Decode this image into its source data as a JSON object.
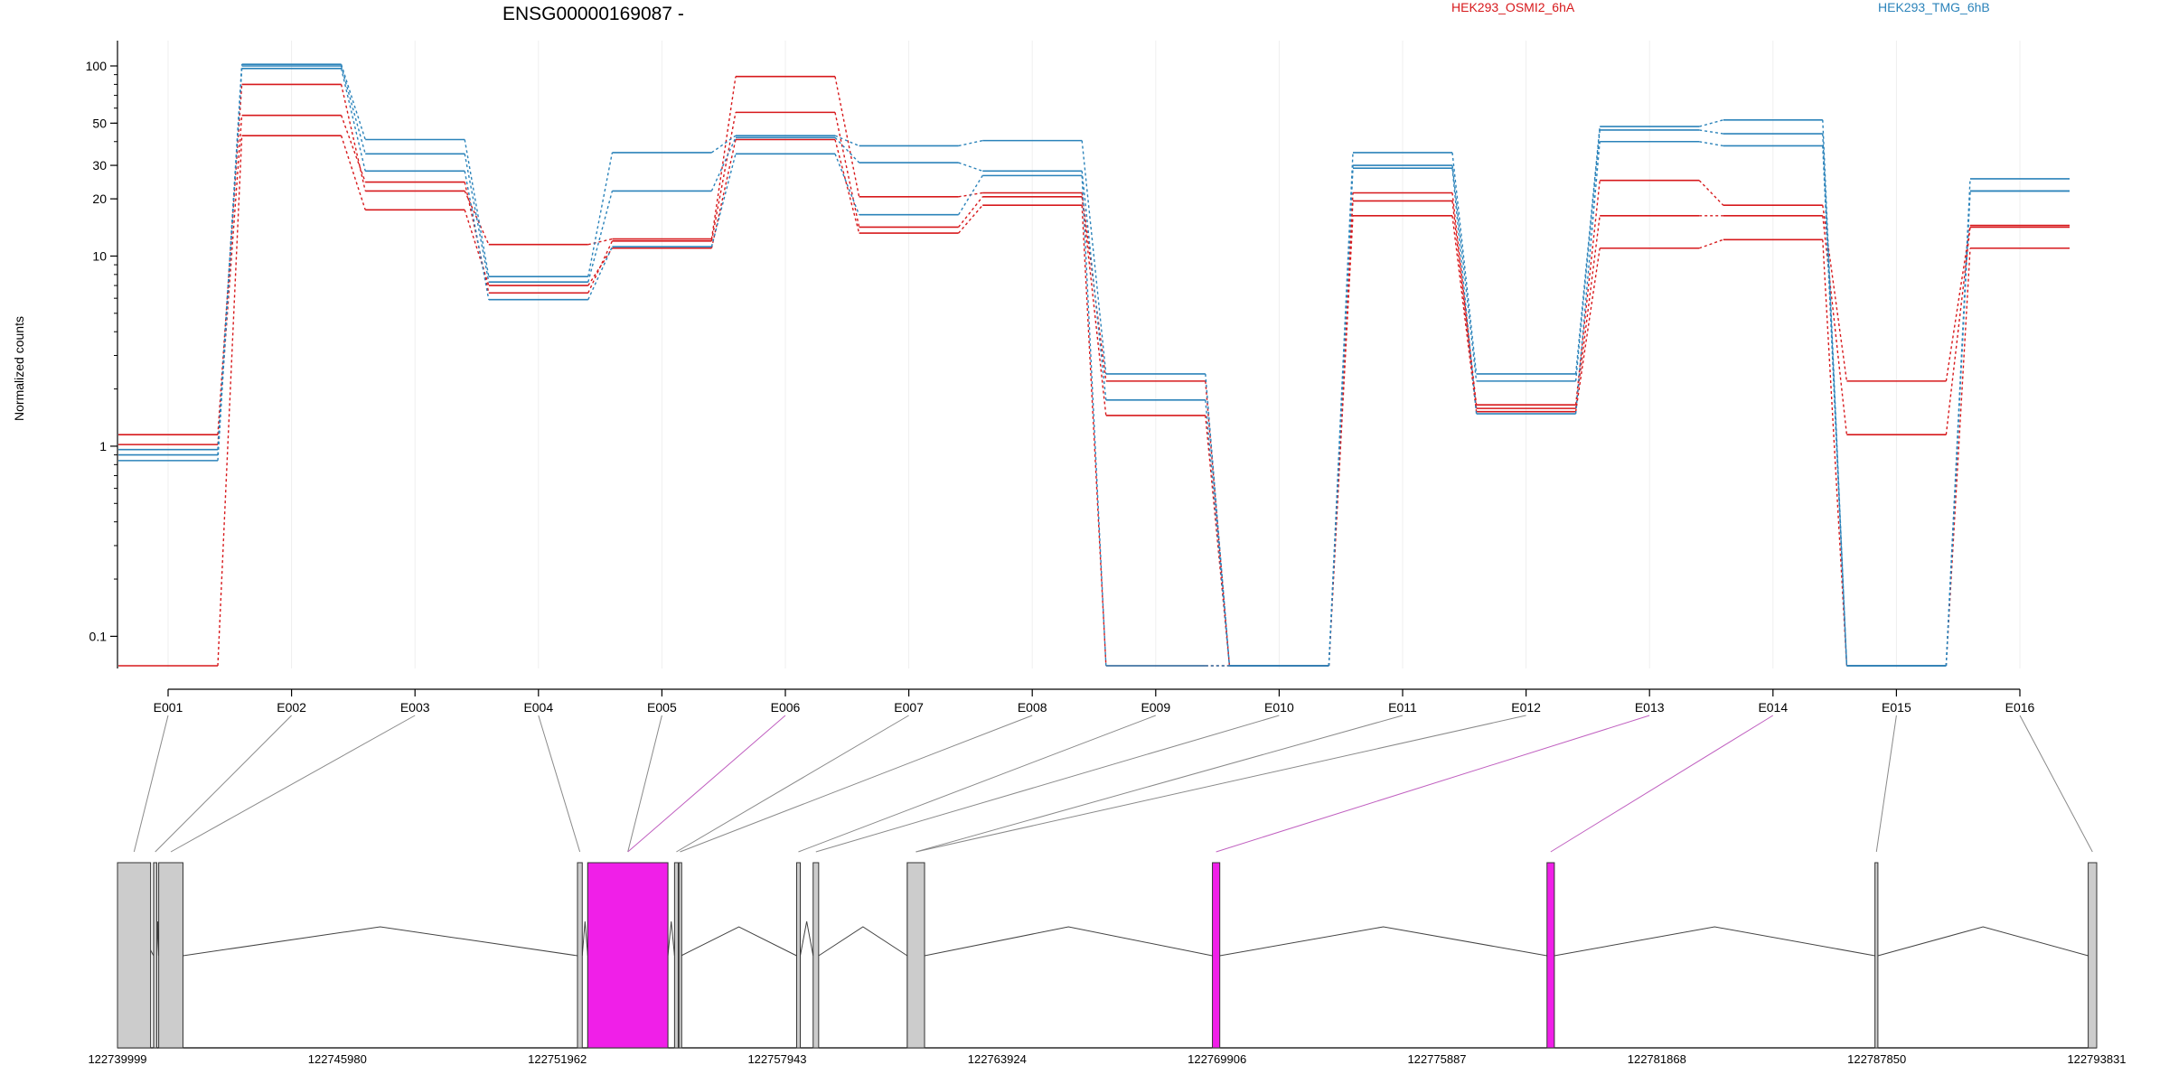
{
  "chart_data": {
    "type": "line",
    "title": "ENSG00000169087 -",
    "ylabel": "Normalized counts",
    "xlabel": "",
    "y_scale": "log",
    "y_ticks": [
      "100",
      "50",
      "30",
      "20",
      "10",
      "1",
      "0.1"
    ],
    "y_tick_values": [
      100,
      50,
      30,
      20,
      10,
      1,
      0.1
    ],
    "ylim": [
      0.075,
      140
    ],
    "grid": "vertical",
    "legend_position": "top-right",
    "categories": [
      "E001",
      "E002",
      "E003",
      "E004",
      "E005",
      "E006",
      "E007",
      "E008",
      "E009",
      "E010",
      "E011",
      "E012",
      "E013",
      "E014",
      "E015",
      "E016"
    ],
    "groups": [
      {
        "name": "HEK293_OSMI2_6hA",
        "color": "#d7191c"
      },
      {
        "name": "HEK293_TMG_6hB",
        "color": "#2b83ba"
      }
    ],
    "series": [
      {
        "group": "HEK293_OSMI2_6hA",
        "values": [
          1.15,
          80,
          22,
          11.5,
          12.3,
          88,
          20.5,
          21.5,
          2.2,
          0.07,
          21.5,
          1.65,
          25,
          18.5,
          2.2,
          14.5
        ]
      },
      {
        "group": "HEK293_OSMI2_6hA",
        "values": [
          1.02,
          55,
          24.5,
          6.4,
          12,
          57,
          14.2,
          20.5,
          1.45,
          0.07,
          19.5,
          1.58,
          16.3,
          16.3,
          1.15,
          14.2
        ]
      },
      {
        "group": "HEK293_OSMI2_6hA",
        "values": [
          0.07,
          43,
          17.5,
          7,
          11,
          41,
          13.2,
          18.5,
          0.07,
          0.07,
          16.3,
          1.52,
          11,
          12.2,
          0.07,
          11
        ]
      },
      {
        "group": "HEK293_TMG_6hB",
        "values": [
          0.96,
          102,
          41,
          7.8,
          35,
          43,
          38,
          40.5,
          2.4,
          0.07,
          35,
          2.4,
          48,
          52,
          0.07,
          25.5
        ]
      },
      {
        "group": "HEK293_TMG_6hB",
        "values": [
          0.9,
          100,
          34.5,
          7.3,
          22,
          42,
          31,
          28,
          1.75,
          0.07,
          30,
          2.2,
          46,
          44,
          0.07,
          22
        ]
      },
      {
        "group": "HEK293_TMG_6hB",
        "values": [
          0.84,
          97,
          28,
          5.9,
          11.2,
          34.5,
          16.5,
          26.5,
          0.07,
          0.07,
          29,
          1.48,
          40,
          38,
          0.07,
          22
        ]
      }
    ],
    "gene_model": {
      "coordinate_ticks": [
        "122739999",
        "122745980",
        "122751962",
        "122757943",
        "122763924",
        "122769906",
        "122775887",
        "122781868",
        "122787850",
        "122793831"
      ],
      "coordinate_tick_values": [
        122739999,
        122745980,
        122751962,
        122757943,
        122763924,
        122769906,
        122775887,
        122781868,
        122787850,
        122793831
      ],
      "highlight_color": "#f01fe8",
      "exon_color": "#cccccc",
      "connector_color": "#888888",
      "exons": [
        {
          "id": "E001",
          "start": 122739999,
          "end": 122740900,
          "highlight": false
        },
        {
          "id": "E002",
          "start": 122740980,
          "end": 122741070,
          "highlight": false
        },
        {
          "id": "E003",
          "start": 122741120,
          "end": 122741780,
          "highlight": false
        },
        {
          "id": "E004",
          "start": 122752510,
          "end": 122752640,
          "highlight": false
        },
        {
          "id": "E005",
          "start": 122752790,
          "end": 122754970,
          "highlight": false
        },
        {
          "id": "E006",
          "start": 122752790,
          "end": 122754970,
          "highlight": true
        },
        {
          "id": "E007",
          "start": 122755150,
          "end": 122755250,
          "highlight": false
        },
        {
          "id": "E008",
          "start": 122755270,
          "end": 122755330,
          "highlight": false
        },
        {
          "id": "E009",
          "start": 122758470,
          "end": 122758570,
          "highlight": false
        },
        {
          "id": "E010",
          "start": 122758920,
          "end": 122759070,
          "highlight": false
        },
        {
          "id": "E011",
          "start": 122761480,
          "end": 122761950,
          "highlight": false
        },
        {
          "id": "E012",
          "start": 122761480,
          "end": 122761950,
          "highlight": false
        },
        {
          "id": "E013",
          "start": 122769780,
          "end": 122769980,
          "highlight": true
        },
        {
          "id": "E014",
          "start": 122778880,
          "end": 122779080,
          "highlight": true
        },
        {
          "id": "E015",
          "start": 122787800,
          "end": 122787880,
          "highlight": false
        },
        {
          "id": "E016",
          "start": 122793600,
          "end": 122793831,
          "highlight": false
        }
      ],
      "intron_apexes": [
        {
          "start": 122739999,
          "end": 122740980,
          "kind": "small"
        },
        {
          "start": 122741070,
          "end": 122741120,
          "kind": "small"
        },
        {
          "start": 122741780,
          "end": 122752510,
          "kind": "large"
        },
        {
          "start": 122752640,
          "end": 122752790,
          "kind": "small"
        },
        {
          "start": 122754970,
          "end": 122755150,
          "kind": "small"
        },
        {
          "start": 122755330,
          "end": 122758470,
          "kind": "large"
        },
        {
          "start": 122758570,
          "end": 122758920,
          "kind": "small"
        },
        {
          "start": 122759070,
          "end": 122761480,
          "kind": "large"
        },
        {
          "start": 122761950,
          "end": 122769780,
          "kind": "large"
        },
        {
          "start": 122769980,
          "end": 122778880,
          "kind": "large"
        },
        {
          "start": 122779080,
          "end": 122787800,
          "kind": "large"
        },
        {
          "start": 122787880,
          "end": 122793600,
          "kind": "large"
        }
      ]
    }
  }
}
